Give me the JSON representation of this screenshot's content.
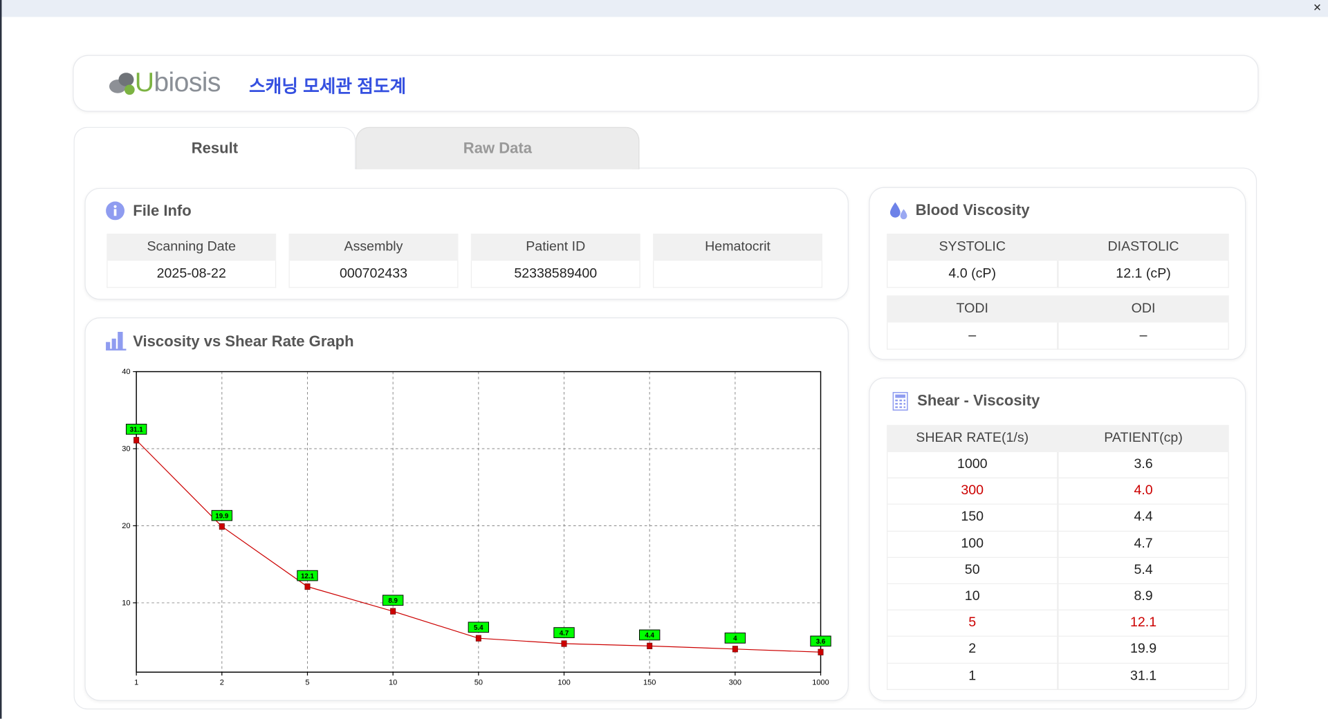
{
  "window": {
    "close": "×"
  },
  "header": {
    "logo": "Ubiosis",
    "title": "스캐닝 모세관 점도계"
  },
  "tabs": [
    "Result",
    "Raw Data"
  ],
  "file_info": {
    "title": "File Info",
    "headers": [
      "Scanning Date",
      "Assembly",
      "Patient ID",
      "Hematocrit"
    ],
    "values": [
      "2025-08-22",
      "000702433",
      "52338589400",
      null
    ]
  },
  "blood_viscosity": {
    "title": "Blood Viscosity",
    "headers": [
      "SYSTOLIC",
      "DIASTOLIC"
    ],
    "values": [
      "4.0 (cP)",
      "12.1 (cP)"
    ],
    "headers2": [
      "TODI",
      "ODI"
    ],
    "values2": [
      "–",
      "–"
    ]
  },
  "graph": {
    "title": "Viscosity vs Shear Rate Graph"
  },
  "chart_data": {
    "type": "line",
    "categories": [
      "1",
      "2",
      "5",
      "10",
      "50",
      "100",
      "150",
      "300",
      "1000"
    ],
    "values": [
      31.1,
      19.9,
      12.1,
      8.9,
      5.4,
      4.7,
      4.4,
      4,
      3.6
    ],
    "color": "#cc0000",
    "label_color": "#00ff00",
    "ylim": [
      1,
      40
    ],
    "yticks": [
      10,
      20,
      30,
      40
    ],
    "grid": true
  },
  "shear_table": {
    "title": "Shear - Viscosity",
    "headers": [
      "SHEAR RATE(1/s)",
      "PATIENT(cp)"
    ],
    "rows": [
      {
        "shear_rate": "1000",
        "patient": "3.6"
      },
      {
        "shear_rate": "300",
        "patient": "4.0",
        "color": "#cc0000"
      },
      {
        "shear_rate": "150",
        "patient": "4.4"
      },
      {
        "shear_rate": "100",
        "patient": "4.7"
      },
      {
        "shear_rate": "50",
        "patient": "5.4"
      },
      {
        "shear_rate": "10",
        "patient": "8.9"
      },
      {
        "shear_rate": "5",
        "patient": "12.1",
        "color": "#cc0000"
      },
      {
        "shear_rate": "2",
        "patient": "19.9"
      },
      {
        "shear_rate": "1",
        "patient": "31.1"
      }
    ]
  }
}
